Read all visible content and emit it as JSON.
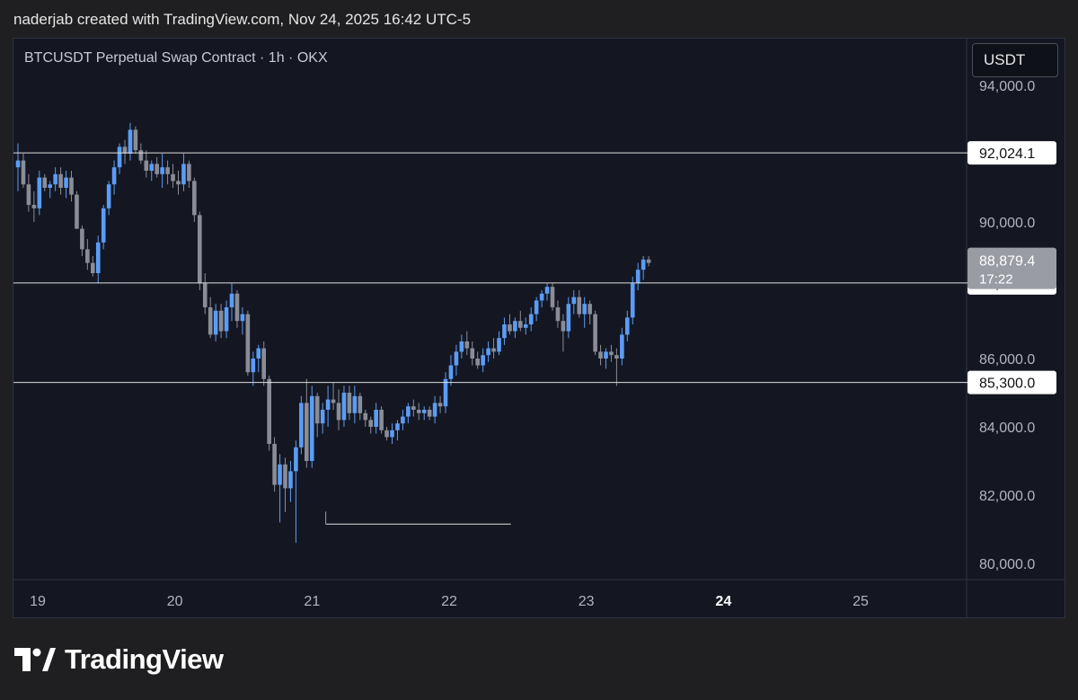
{
  "header": {
    "attribution": "naderjab created with TradingView.com, Nov 24, 2025 16:42 UTC-5"
  },
  "toolbar": {
    "currency": "USDT"
  },
  "brand": {
    "name": "TradingView"
  },
  "colors": {
    "up": "#5b9cf6",
    "down": "#8a8d96",
    "background": "#141722",
    "line": "#e0e0e0"
  },
  "chart_data": {
    "type": "candlestick",
    "title": "BTCUSDT Perpetual Swap Contract · 1h · OKX",
    "ylim": [
      79800,
      94200
    ],
    "x_ticks": [
      {
        "day": 19,
        "label": "19",
        "bold": false
      },
      {
        "day": 20,
        "label": "20",
        "bold": false
      },
      {
        "day": 21,
        "label": "21",
        "bold": false
      },
      {
        "day": 22,
        "label": "22",
        "bold": false
      },
      {
        "day": 23,
        "label": "23",
        "bold": false
      },
      {
        "day": 24,
        "label": "24",
        "bold": true
      },
      {
        "day": 25,
        "label": "25",
        "bold": false
      }
    ],
    "x_range": [
      18.95,
      25.8
    ],
    "y_ticks": [
      {
        "value": 94000,
        "label": "94,000.0"
      },
      {
        "value": 90000,
        "label": "90,000.0"
      },
      {
        "value": 86000,
        "label": "86,000.0"
      },
      {
        "value": 84000,
        "label": "84,000.0"
      },
      {
        "value": 82000,
        "label": "82,000.0"
      },
      {
        "value": 80000,
        "label": "80,000.0"
      }
    ],
    "levels": [
      {
        "value": 92024.1,
        "label": "92,024.1"
      },
      {
        "value": 88214.4,
        "label": "88,214.4"
      },
      {
        "value": 85300.0,
        "label": "85,300.0"
      }
    ],
    "last_price": {
      "value": 88879.4,
      "label": "88,879.4",
      "countdown": "17:22"
    },
    "low_marker": {
      "value": 81150,
      "from_day": 21.1,
      "to_day": 22.45
    },
    "candles": [
      [
        91600,
        92300,
        90900,
        91800
      ],
      [
        91800,
        92000,
        91000,
        91100
      ],
      [
        91100,
        91400,
        90300,
        90500
      ],
      [
        90500,
        90900,
        90000,
        90400
      ],
      [
        90400,
        91500,
        90200,
        91300
      ],
      [
        91300,
        91400,
        90900,
        91000
      ],
      [
        91000,
        91200,
        90700,
        91100
      ],
      [
        91100,
        91600,
        90900,
        91400
      ],
      [
        91400,
        91600,
        90800,
        91000
      ],
      [
        91000,
        91500,
        90700,
        91300
      ],
      [
        91300,
        91500,
        90600,
        90800
      ],
      [
        90800,
        90900,
        89800,
        89800
      ],
      [
        89800,
        89900,
        89000,
        89200
      ],
      [
        89200,
        89500,
        88600,
        88800
      ],
      [
        88800,
        89000,
        88400,
        88500
      ],
      [
        88500,
        89600,
        88200,
        89400
      ],
      [
        89400,
        90500,
        89200,
        90400
      ],
      [
        90400,
        91200,
        90200,
        91100
      ],
      [
        91100,
        91800,
        90800,
        91600
      ],
      [
        91600,
        92300,
        91400,
        92200
      ],
      [
        92200,
        92400,
        91700,
        92000
      ],
      [
        92000,
        92900,
        91800,
        92700
      ],
      [
        92700,
        92800,
        92000,
        92100
      ],
      [
        92100,
        92300,
        91700,
        91800
      ],
      [
        91800,
        92100,
        91300,
        91500
      ],
      [
        91500,
        91800,
        91200,
        91700
      ],
      [
        91700,
        91900,
        91300,
        91400
      ],
      [
        91400,
        92000,
        91000,
        91600
      ],
      [
        91600,
        91800,
        91100,
        91400
      ],
      [
        91400,
        91700,
        91000,
        91200
      ],
      [
        91200,
        91500,
        90800,
        91100
      ],
      [
        91100,
        92000,
        90900,
        91700
      ],
      [
        91700,
        91800,
        91000,
        91200
      ],
      [
        91200,
        91300,
        90000,
        90200
      ],
      [
        90200,
        90300,
        88000,
        88200
      ],
      [
        88200,
        88500,
        87300,
        87500
      ],
      [
        87500,
        87800,
        86600,
        86700
      ],
      [
        86700,
        87600,
        86500,
        87400
      ],
      [
        87400,
        87600,
        86600,
        86800
      ],
      [
        86800,
        87700,
        86600,
        87500
      ],
      [
        87500,
        88200,
        87100,
        87900
      ],
      [
        87900,
        88000,
        86900,
        87100
      ],
      [
        87100,
        87500,
        86700,
        87300
      ],
      [
        87300,
        87400,
        85500,
        85600
      ],
      [
        85600,
        86200,
        85200,
        86000
      ],
      [
        86000,
        86400,
        85600,
        86300
      ],
      [
        86300,
        86500,
        85200,
        85400
      ],
      [
        85400,
        85500,
        83300,
        83500
      ],
      [
        83500,
        83700,
        82100,
        82300
      ],
      [
        82300,
        83200,
        81200,
        82900
      ],
      [
        82900,
        83100,
        81500,
        82200
      ],
      [
        82200,
        83000,
        81800,
        82700
      ],
      [
        82700,
        83600,
        80600,
        83400
      ],
      [
        83400,
        84900,
        83200,
        84700
      ],
      [
        84700,
        85400,
        82800,
        83000
      ],
      [
        83000,
        85200,
        82800,
        84900
      ],
      [
        84900,
        85000,
        83700,
        84100
      ],
      [
        84100,
        84700,
        83800,
        84500
      ],
      [
        84500,
        85200,
        84000,
        84800
      ],
      [
        84800,
        85300,
        84500,
        84700
      ],
      [
        84700,
        85100,
        83900,
        84200
      ],
      [
        84200,
        85200,
        84000,
        85000
      ],
      [
        85000,
        85200,
        84200,
        84400
      ],
      [
        84400,
        85200,
        84100,
        84900
      ],
      [
        84900,
        85000,
        84200,
        84400
      ],
      [
        84400,
        84500,
        84000,
        84200
      ],
      [
        84200,
        84300,
        83800,
        84000
      ],
      [
        84000,
        84700,
        83800,
        84500
      ],
      [
        84500,
        84600,
        83800,
        83900
      ],
      [
        83900,
        84000,
        83600,
        83700
      ],
      [
        83700,
        84100,
        83500,
        83900
      ],
      [
        83900,
        84200,
        83600,
        84100
      ],
      [
        84100,
        84500,
        83900,
        84300
      ],
      [
        84300,
        84700,
        84100,
        84600
      ],
      [
        84600,
        84800,
        84300,
        84500
      ],
      [
        84500,
        84700,
        84200,
        84400
      ],
      [
        84400,
        84600,
        84200,
        84500
      ],
      [
        84500,
        84600,
        84200,
        84300
      ],
      [
        84300,
        84900,
        84100,
        84700
      ],
      [
        84700,
        84900,
        84400,
        84600
      ],
      [
        84600,
        85600,
        84400,
        85400
      ],
      [
        85400,
        86100,
        85200,
        85800
      ],
      [
        85800,
        86400,
        85500,
        86200
      ],
      [
        86200,
        86700,
        86000,
        86500
      ],
      [
        86500,
        86800,
        86100,
        86300
      ],
      [
        86300,
        86500,
        85800,
        86000
      ],
      [
        86000,
        86200,
        85700,
        85800
      ],
      [
        85800,
        86300,
        85600,
        86100
      ],
      [
        86100,
        86500,
        85900,
        86300
      ],
      [
        86300,
        86600,
        86000,
        86200
      ],
      [
        86200,
        86800,
        86100,
        86600
      ],
      [
        86600,
        87200,
        86400,
        87000
      ],
      [
        87000,
        87300,
        86700,
        86800
      ],
      [
        86800,
        87200,
        86600,
        87100
      ],
      [
        87100,
        87400,
        86800,
        86900
      ],
      [
        86900,
        87200,
        86700,
        87000
      ],
      [
        87000,
        87500,
        86800,
        87300
      ],
      [
        87300,
        87800,
        87100,
        87700
      ],
      [
        87700,
        88000,
        87500,
        87900
      ],
      [
        87900,
        88200,
        87700,
        88100
      ],
      [
        88100,
        88200,
        87400,
        87500
      ],
      [
        87500,
        87700,
        86900,
        87100
      ],
      [
        87100,
        87300,
        86200,
        86800
      ],
      [
        86800,
        87800,
        86600,
        87600
      ],
      [
        87600,
        88000,
        87300,
        87800
      ],
      [
        87800,
        88000,
        87200,
        87300
      ],
      [
        87300,
        87800,
        86900,
        87600
      ],
      [
        87600,
        87700,
        87000,
        87300
      ],
      [
        87300,
        87400,
        86100,
        86200
      ],
      [
        86200,
        86400,
        85800,
        86000
      ],
      [
        86000,
        86300,
        85700,
        86200
      ],
      [
        86200,
        86400,
        85900,
        86100
      ],
      [
        86100,
        86300,
        85200,
        86000
      ],
      [
        86000,
        86900,
        85800,
        86700
      ],
      [
        86700,
        87400,
        86500,
        87200
      ],
      [
        87200,
        88400,
        87000,
        88200
      ],
      [
        88200,
        88800,
        88000,
        88600
      ],
      [
        88600,
        89000,
        88300,
        88900
      ],
      [
        88900,
        89000,
        88700,
        88800
      ]
    ]
  }
}
